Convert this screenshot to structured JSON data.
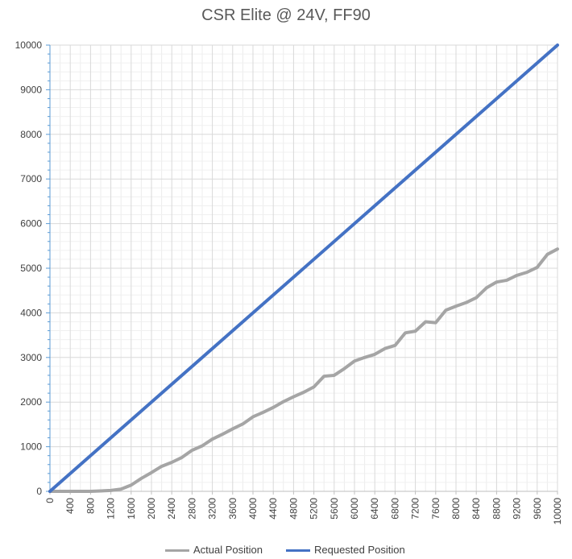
{
  "chart_data": {
    "type": "line",
    "title": "CSR Elite @ 24V, FF90",
    "xlabel": "",
    "ylabel": "",
    "xlim": [
      0,
      10000
    ],
    "ylim": [
      0,
      10000
    ],
    "x_ticks": [
      0,
      400,
      800,
      1200,
      1600,
      2000,
      2400,
      2800,
      3200,
      3600,
      4000,
      4400,
      4800,
      5200,
      5600,
      6000,
      6400,
      6800,
      7200,
      7600,
      8000,
      8400,
      8800,
      9200,
      9600,
      10000
    ],
    "y_ticks": [
      0,
      1000,
      2000,
      3000,
      4000,
      5000,
      6000,
      7000,
      8000,
      9000,
      10000
    ],
    "grid": true,
    "legend_position": "bottom",
    "series": [
      {
        "name": "Actual Position",
        "color": "#a5a5a5",
        "x": [
          0,
          200,
          400,
          600,
          800,
          1000,
          1200,
          1400,
          1600,
          1800,
          2000,
          2200,
          2400,
          2600,
          2800,
          3000,
          3200,
          3400,
          3600,
          3800,
          4000,
          4200,
          4400,
          4600,
          4800,
          5000,
          5200,
          5400,
          5600,
          5800,
          6000,
          6200,
          6400,
          6600,
          6800,
          7000,
          7200,
          7400,
          7600,
          7800,
          8000,
          8200,
          8400,
          8600,
          8800,
          9000,
          9200,
          9400,
          9600,
          9800,
          10000
        ],
        "y": [
          0,
          0,
          0,
          0,
          0,
          10,
          20,
          50,
          140,
          290,
          420,
          560,
          650,
          760,
          920,
          1020,
          1170,
          1280,
          1400,
          1510,
          1670,
          1770,
          1880,
          2010,
          2120,
          2220,
          2340,
          2580,
          2600,
          2750,
          2920,
          3000,
          3070,
          3200,
          3270,
          3550,
          3590,
          3800,
          3780,
          4060,
          4150,
          4230,
          4340,
          4560,
          4690,
          4730,
          4840,
          4910,
          5020,
          5310,
          5430
        ]
      },
      {
        "name": "Requested Position",
        "color": "#4472c4",
        "x": [
          0,
          10000
        ],
        "y": [
          0,
          10000
        ]
      }
    ]
  }
}
